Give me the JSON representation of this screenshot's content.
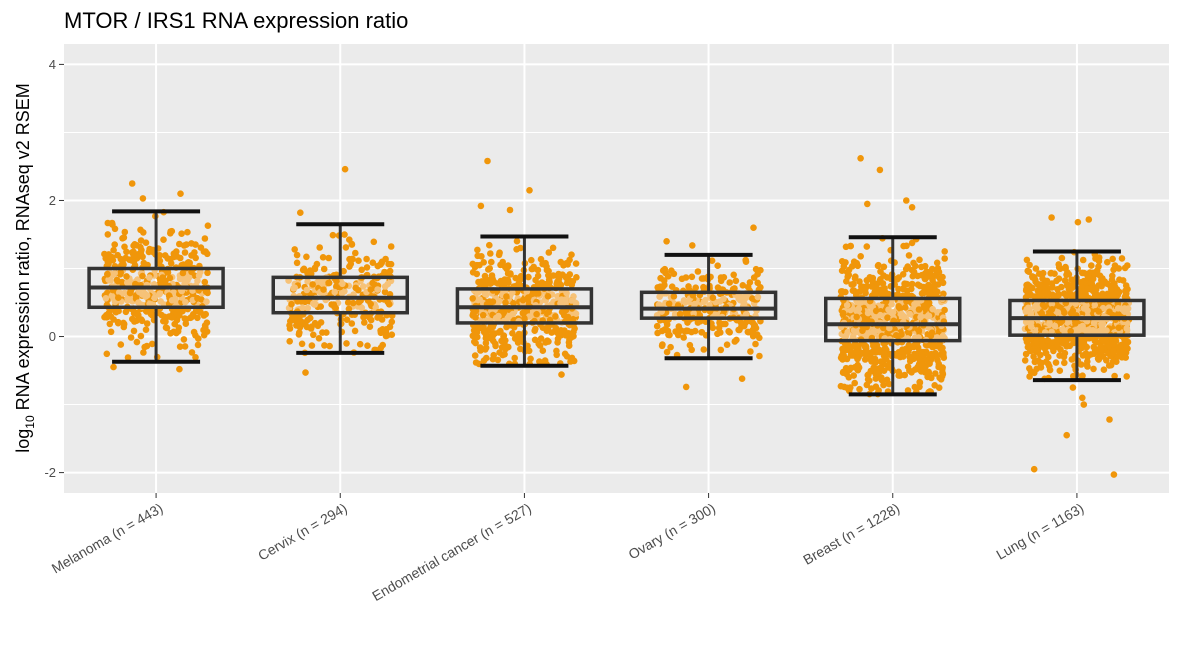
{
  "chart_data": {
    "type": "box",
    "title": "MTOR / IRS1 RNA expression ratio",
    "ylabel": {
      "prefix": "log",
      "subscript": "10",
      "suffix": " RNA expression ratio, RNAseq v2 RSEM"
    },
    "xlabel": "",
    "ylim": [
      -2.3,
      4.3
    ],
    "yticks": [
      {
        "value": 4,
        "label": "4"
      },
      {
        "value": 2,
        "label": "2"
      },
      {
        "value": 0,
        "label": "0"
      },
      {
        "value": -2,
        "label": "-2"
      }
    ],
    "grid": true,
    "point_color": "#f0960a",
    "point_highlight_color": "#f6c278",
    "panel_background": "#ebebeb",
    "box_color": "#333333",
    "categories": [
      {
        "label": "Melanoma (n = 443)",
        "n": 443,
        "whisker_low": -0.37,
        "q1": 0.43,
        "median": 0.72,
        "q3": 1.0,
        "whisker_high": 1.84,
        "y_range": [
          -0.48,
          2.25
        ],
        "outliers": [
          2.25,
          2.1,
          2.03,
          -0.45,
          -0.48
        ]
      },
      {
        "label": "Cervix (n = 294)",
        "n": 294,
        "whisker_low": -0.24,
        "q1": 0.35,
        "median": 0.57,
        "q3": 0.87,
        "whisker_high": 1.65,
        "y_range": [
          -0.53,
          2.46
        ],
        "outliers": [
          2.46,
          1.82,
          -0.53
        ]
      },
      {
        "label": "Endometrial cancer (n = 527)",
        "n": 527,
        "whisker_low": -0.43,
        "q1": 0.2,
        "median": 0.43,
        "q3": 0.7,
        "whisker_high": 1.47,
        "y_range": [
          -0.56,
          2.58
        ],
        "outliers": [
          2.58,
          2.15,
          1.92,
          1.86,
          -0.56
        ]
      },
      {
        "label": "Ovary (n = 300)",
        "n": 300,
        "whisker_low": -0.32,
        "q1": 0.27,
        "median": 0.41,
        "q3": 0.65,
        "whisker_high": 1.2,
        "y_range": [
          -0.74,
          1.6
        ],
        "outliers": [
          1.6,
          1.4,
          1.34,
          -0.62,
          -0.74
        ]
      },
      {
        "label": "Breast (n = 1228)",
        "n": 1228,
        "whisker_low": -0.85,
        "q1": -0.06,
        "median": 0.18,
        "q3": 0.56,
        "whisker_high": 1.46,
        "y_range": [
          -0.85,
          2.62
        ],
        "outliers": [
          2.62,
          2.45,
          2.0,
          1.95,
          1.9,
          -0.82
        ]
      },
      {
        "label": "Lung (n = 1163)",
        "n": 1163,
        "whisker_low": -0.64,
        "q1": 0.02,
        "median": 0.27,
        "q3": 0.53,
        "whisker_high": 1.25,
        "y_range": [
          -2.03,
          1.75
        ],
        "outliers": [
          1.75,
          1.72,
          1.68,
          -0.75,
          -0.9,
          -1.0,
          -1.22,
          -1.45,
          -1.95,
          -2.03
        ]
      }
    ]
  }
}
